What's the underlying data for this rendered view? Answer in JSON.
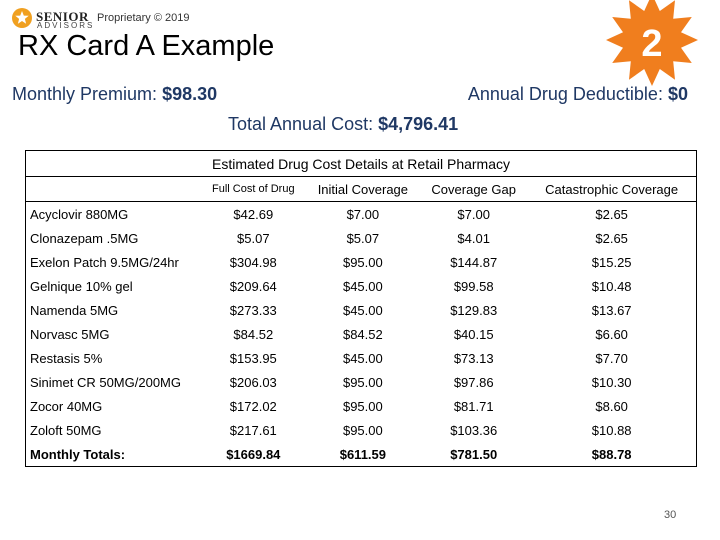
{
  "header": {
    "logo_name": "SENIOR",
    "logo_sub": "ADVISORS",
    "proprietary": "Proprietary © 2019",
    "title": "RX Card A Example",
    "badge": "2"
  },
  "summary": {
    "premium_label": "Monthly Premium:",
    "premium_value": "$98.30",
    "deductible_label": "Annual Drug Deductible:",
    "deductible_value": "$0",
    "total_label": "Total Annual Cost:",
    "total_value": "$4,796.41"
  },
  "table": {
    "title": "Estimated Drug Cost Details at Retail Pharmacy",
    "columns": [
      "Full Cost of Drug",
      "Initial Coverage",
      "Coverage Gap",
      "Catastrophic Coverage"
    ],
    "rows": [
      [
        "Acyclovir 880MG",
        "$42.69",
        "$7.00",
        "$7.00",
        "$2.65"
      ],
      [
        "Clonazepam .5MG",
        "$5.07",
        "$5.07",
        "$4.01",
        "$2.65"
      ],
      [
        "Exelon Patch 9.5MG/24hr",
        "$304.98",
        "$95.00",
        "$144.87",
        "$15.25"
      ],
      [
        "Gelnique 10% gel",
        "$209.64",
        "$45.00",
        "$99.58",
        "$10.48"
      ],
      [
        "Namenda 5MG",
        "$273.33",
        "$45.00",
        "$129.83",
        "$13.67"
      ],
      [
        "Norvasc 5MG",
        "$84.52",
        "$84.52",
        "$40.15",
        "$6.60"
      ],
      [
        "Restasis 5%",
        "$153.95",
        "$45.00",
        "$73.13",
        "$7.70"
      ],
      [
        "Sinimet CR 50MG/200MG",
        "$206.03",
        "$95.00",
        "$97.86",
        "$10.30"
      ],
      [
        "Zocor 40MG",
        "$172.02",
        "$95.00",
        "$81.71",
        "$8.60"
      ],
      [
        "Zoloft 50MG",
        "$217.61",
        "$95.00",
        "$103.36",
        "$10.88"
      ]
    ],
    "totals": [
      "Monthly Totals:",
      "$1669.84",
      "$611.59",
      "$781.50",
      "$88.78"
    ]
  },
  "footer": {
    "page_number": "30"
  }
}
